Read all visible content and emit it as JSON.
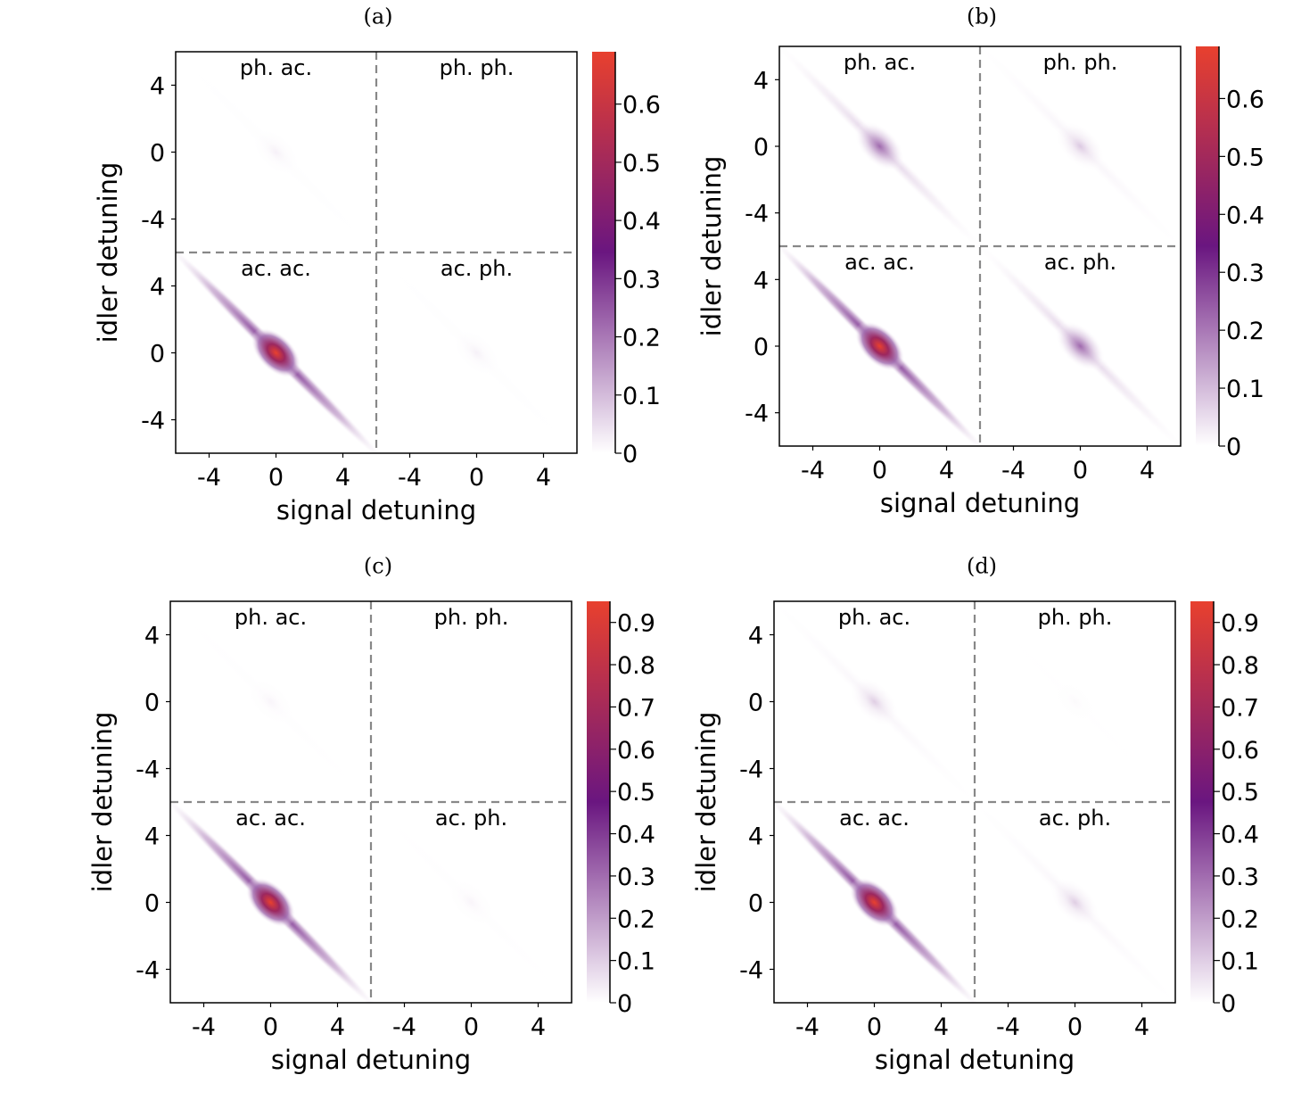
{
  "colors": {
    "cmap_low": "#ffffff",
    "cmap_mid": "#6a1680",
    "cmap_high": "#e8402e",
    "divider": "#888888"
  },
  "chart_data": [
    {
      "type": "heatmap",
      "panel": "(a)",
      "title": "",
      "xlabel": "signal detuning",
      "ylabel": "idler detuning",
      "x_ticks": [
        "-4",
        "0",
        "4",
        "-4",
        "0",
        "4"
      ],
      "y_ticks": [
        "4",
        "0",
        "-4",
        "4",
        "0",
        "-4"
      ],
      "quadrants": [
        "ph. ac.",
        "ph. ph.",
        "ac. ac.",
        "ac. ph."
      ],
      "colorbar_ticks": [
        "0",
        "0.1",
        "0.2",
        "0.3",
        "0.4",
        "0.5",
        "0.6"
      ],
      "colorbar_range": [
        0,
        0.69
      ],
      "blobs": [
        {
          "quadrant": "ac. ac.",
          "peak": 0.69,
          "center": [
            0,
            0
          ]
        },
        {
          "quadrant": "ph. ac.",
          "peak": 0.02,
          "center": [
            0,
            0
          ]
        },
        {
          "quadrant": "ac. ph.",
          "peak": 0.02,
          "center": [
            0,
            0
          ]
        },
        {
          "quadrant": "ph. ph.",
          "peak": 0.0,
          "center": [
            0,
            0
          ]
        }
      ]
    },
    {
      "type": "heatmap",
      "panel": "(b)",
      "title": "",
      "xlabel": "signal detuning",
      "ylabel": "idler detuning",
      "x_ticks": [
        "-4",
        "0",
        "4",
        "-4",
        "0",
        "4"
      ],
      "y_ticks": [
        "4",
        "0",
        "-4",
        "4",
        "0",
        "-4"
      ],
      "quadrants": [
        "ph. ac.",
        "ph. ph.",
        "ac. ac.",
        "ac. ph."
      ],
      "colorbar_ticks": [
        "0",
        "0.1",
        "0.2",
        "0.3",
        "0.4",
        "0.5",
        "0.6"
      ],
      "colorbar_range": [
        0,
        0.69
      ],
      "blobs": [
        {
          "quadrant": "ac. ac.",
          "peak": 0.69,
          "center": [
            0,
            0
          ]
        },
        {
          "quadrant": "ph. ac.",
          "peak": 0.22,
          "center": [
            0,
            0
          ]
        },
        {
          "quadrant": "ac. ph.",
          "peak": 0.22,
          "center": [
            0,
            0
          ]
        },
        {
          "quadrant": "ph. ph.",
          "peak": 0.08,
          "center": [
            0,
            0
          ]
        }
      ]
    },
    {
      "type": "heatmap",
      "panel": "(c)",
      "title": "",
      "xlabel": "signal detuning",
      "ylabel": "idler detuning",
      "x_ticks": [
        "-4",
        "0",
        "4",
        "-4",
        "0",
        "4"
      ],
      "y_ticks": [
        "4",
        "0",
        "-4",
        "4",
        "0",
        "-4"
      ],
      "quadrants": [
        "ph. ac.",
        "ph. ph.",
        "ac. ac.",
        "ac. ph."
      ],
      "colorbar_ticks": [
        "0",
        "0.1",
        "0.2",
        "0.3",
        "0.4",
        "0.5",
        "0.6",
        "0.7",
        "0.8",
        "0.9"
      ],
      "colorbar_range": [
        0,
        0.95
      ],
      "blobs": [
        {
          "quadrant": "ac. ac.",
          "peak": 0.95,
          "center": [
            0,
            0
          ]
        },
        {
          "quadrant": "ph. ac.",
          "peak": 0.02,
          "center": [
            0,
            0
          ]
        },
        {
          "quadrant": "ac. ph.",
          "peak": 0.02,
          "center": [
            0,
            0
          ]
        },
        {
          "quadrant": "ph. ph.",
          "peak": 0.0,
          "center": [
            0,
            0
          ]
        }
      ]
    },
    {
      "type": "heatmap",
      "panel": "(d)",
      "title": "",
      "xlabel": "signal detuning",
      "ylabel": "idler detuning",
      "x_ticks": [
        "-4",
        "0",
        "4",
        "-4",
        "0",
        "4"
      ],
      "y_ticks": [
        "4",
        "0",
        "-4",
        "4",
        "0",
        "-4"
      ],
      "quadrants": [
        "ph. ac.",
        "ph. ph.",
        "ac. ac.",
        "ac. ph."
      ],
      "colorbar_ticks": [
        "0",
        "0.1",
        "0.2",
        "0.3",
        "0.4",
        "0.5",
        "0.6",
        "0.7",
        "0.8",
        "0.9"
      ],
      "colorbar_range": [
        0,
        0.95
      ],
      "blobs": [
        {
          "quadrant": "ac. ac.",
          "peak": 0.95,
          "center": [
            0,
            0
          ]
        },
        {
          "quadrant": "ph. ac.",
          "peak": 0.1,
          "center": [
            0,
            0
          ]
        },
        {
          "quadrant": "ac. ph.",
          "peak": 0.1,
          "center": [
            0,
            0
          ]
        },
        {
          "quadrant": "ph. ph.",
          "peak": 0.01,
          "center": [
            0,
            0
          ]
        }
      ]
    }
  ]
}
